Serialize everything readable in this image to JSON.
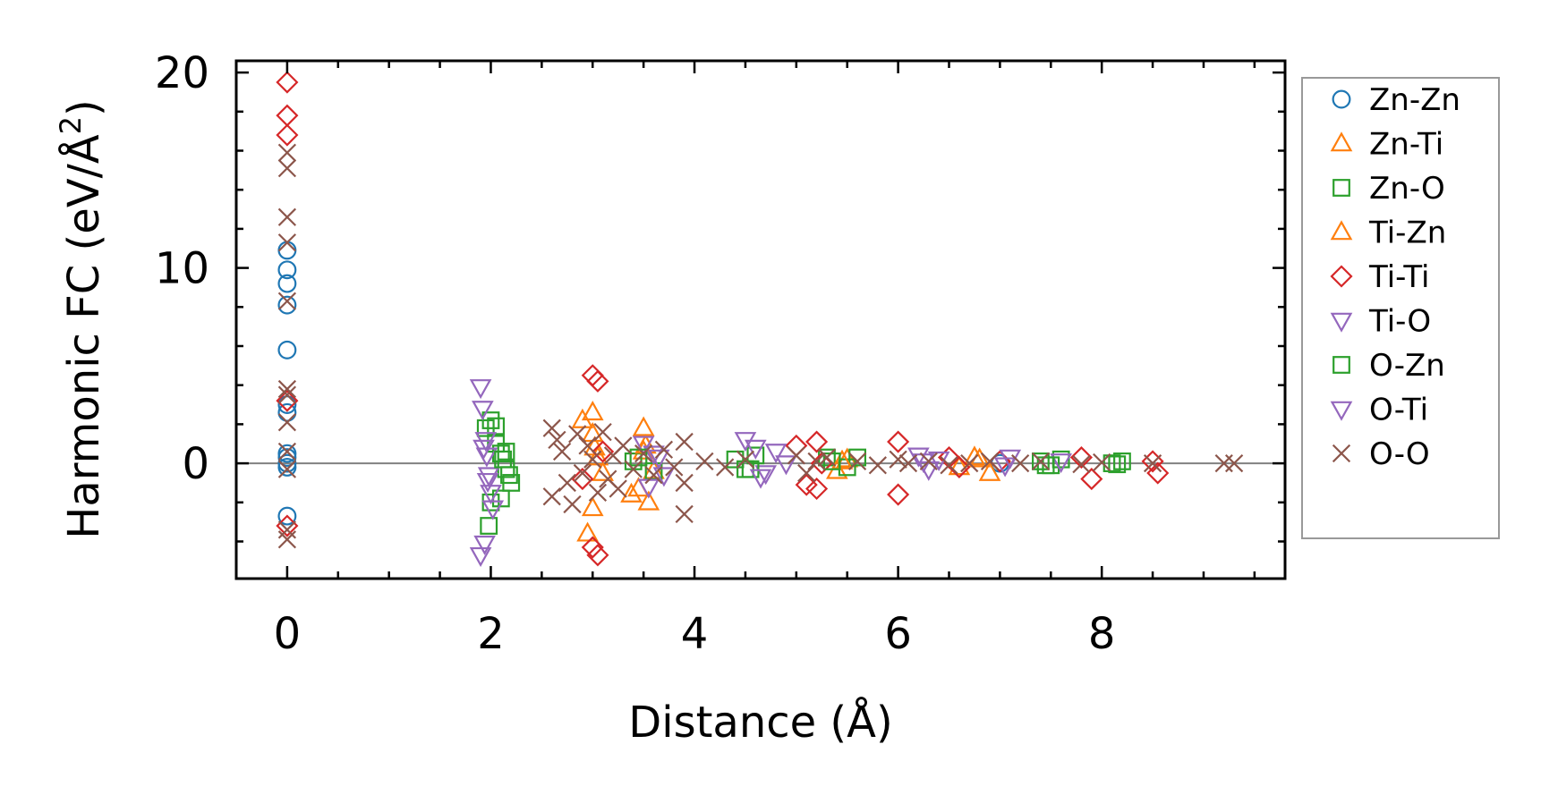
{
  "chart_data": {
    "type": "scatter",
    "title": "",
    "xlabel": "Distance (Å)",
    "ylabel_main": "Harmonic FC (eV/Å",
    "ylabel_sup": "2",
    "ylabel_close": ")",
    "xlim": [
      -0.5,
      9.8
    ],
    "ylim": [
      -5.9,
      20.6
    ],
    "xticks": [
      0,
      2,
      4,
      6,
      8
    ],
    "xtick_labels": [
      "0",
      "2",
      "4",
      "6",
      "8"
    ],
    "yticks": [
      0,
      10,
      20
    ],
    "ytick_labels": [
      "0",
      "10",
      "20"
    ],
    "zero_line": 0,
    "legend_position": "outside right",
    "series": [
      {
        "name": "Zn-Zn",
        "marker": "circle",
        "color": "#1f77b4",
        "x": [
          0,
          0,
          0,
          0,
          0,
          0,
          0,
          0,
          0,
          0,
          0,
          0,
          7.0
        ],
        "y": [
          10.9,
          9.9,
          9.2,
          8.1,
          5.8,
          3.0,
          2.6,
          0.5,
          0.3,
          0.0,
          -0.2,
          -2.7,
          0.0
        ]
      },
      {
        "name": "Zn-Ti",
        "marker": "triangle-up",
        "color": "#ff7f0e",
        "x": [
          2.9,
          3.0,
          3.0,
          3.05,
          3.1,
          3.5,
          3.5,
          3.45,
          3.55,
          3.6,
          3.0,
          2.95,
          5.4,
          5.5,
          6.8,
          6.9,
          6.6
        ],
        "y": [
          2.2,
          2.6,
          1.5,
          0.3,
          -0.5,
          1.8,
          0.6,
          -1.3,
          -2.0,
          -0.4,
          -2.3,
          -3.6,
          -0.4,
          0.2,
          0.2,
          -0.5,
          -0.2
        ]
      },
      {
        "name": "Zn-O",
        "marker": "square",
        "color": "#2ca02c",
        "x": [
          1.95,
          2.0,
          2.05,
          2.1,
          2.15,
          2.2,
          2.0,
          2.1,
          2.05,
          1.98,
          2.15,
          3.4,
          3.6,
          4.4,
          4.5,
          4.6,
          5.3,
          5.5,
          5.6,
          7.4,
          7.5,
          7.6,
          8.1,
          8.2
        ],
        "y": [
          1.8,
          2.2,
          1.0,
          0.5,
          -0.3,
          -1.0,
          -2.0,
          -1.8,
          1.9,
          -3.2,
          0.6,
          0.1,
          -0.4,
          0.2,
          -0.3,
          0.4,
          0.3,
          -0.2,
          0.3,
          0.1,
          -0.1,
          0.2,
          0.0,
          0.1
        ]
      },
      {
        "name": "Ti-Zn",
        "marker": "triangle-up",
        "color": "#ff7f0e",
        "x": [
          3.02,
          3.38,
          3.52,
          5.45,
          6.75
        ],
        "y": [
          0.8,
          -1.6,
          0.9,
          0.1,
          0.3
        ]
      },
      {
        "name": "Ti-Ti",
        "marker": "diamond",
        "color": "#d62728",
        "x": [
          0,
          0,
          0,
          0,
          0,
          3.0,
          3.05,
          3.0,
          3.05,
          2.9,
          3.1,
          5.0,
          5.1,
          5.2,
          5.2,
          5.25,
          6.0,
          6.0,
          6.5,
          6.6,
          7.0,
          7.8,
          7.9,
          8.5,
          8.55
        ],
        "y": [
          19.5,
          17.8,
          16.8,
          3.2,
          -3.2,
          4.5,
          4.2,
          -4.3,
          -4.7,
          -0.8,
          0.6,
          0.9,
          -1.1,
          1.1,
          -1.3,
          0.0,
          1.1,
          -1.6,
          0.3,
          -0.2,
          0.1,
          0.3,
          -0.8,
          0.1,
          -0.5
        ]
      },
      {
        "name": "Ti-O",
        "marker": "triangle-down",
        "color": "#9467bd",
        "x": [
          1.9,
          1.92,
          1.95,
          1.96,
          1.98,
          2.0,
          2.02,
          1.9,
          1.94,
          3.5,
          3.6,
          3.7,
          3.55,
          4.5,
          4.6,
          4.7,
          4.8,
          4.9,
          6.2,
          6.4,
          6.3,
          7.1,
          7.6
        ],
        "y": [
          3.9,
          2.8,
          1.2,
          0.4,
          -0.6,
          -1.5,
          -2.3,
          -4.7,
          -4.1,
          1.0,
          0.5,
          -0.6,
          -1.2,
          1.2,
          0.8,
          -0.5,
          0.6,
          0.0,
          0.4,
          0.2,
          -0.3,
          0.3,
          0.1
        ]
      },
      {
        "name": "O-Zn",
        "marker": "square",
        "color": "#2ca02c",
        "x": [
          2.12,
          2.18,
          3.45,
          4.55,
          5.35,
          7.45,
          8.15
        ],
        "y": [
          0.2,
          -0.6,
          0.3,
          -0.3,
          0.1,
          -0.1,
          -0.05
        ]
      },
      {
        "name": "O-Ti",
        "marker": "triangle-down",
        "color": "#9467bd",
        "x": [
          1.93,
          1.97,
          3.65,
          4.65,
          6.25,
          7.05
        ],
        "y": [
          0.8,
          -0.9,
          0.3,
          -0.7,
          0.1,
          -0.1
        ]
      },
      {
        "name": "O-O",
        "marker": "x",
        "color": "#8c564b",
        "x": [
          0,
          0,
          0,
          0,
          0,
          0,
          0,
          0,
          0,
          0,
          0,
          0,
          2.6,
          2.6,
          2.65,
          2.7,
          2.75,
          2.8,
          2.85,
          2.9,
          2.95,
          3.0,
          3.05,
          3.1,
          3.15,
          3.2,
          3.25,
          3.3,
          3.4,
          3.5,
          3.6,
          3.7,
          3.8,
          3.9,
          3.9,
          3.9,
          4.1,
          4.3,
          4.5,
          5.0,
          5.1,
          5.2,
          5.3,
          5.6,
          5.8,
          6.0,
          6.1,
          6.3,
          6.5,
          6.7,
          6.9,
          7.2,
          7.4,
          7.8,
          8.0,
          8.5,
          9.2,
          9.3
        ],
        "y": [
          15.9,
          15.1,
          12.6,
          11.3,
          8.3,
          3.8,
          3.5,
          2.1,
          0.6,
          -0.3,
          -3.4,
          -3.9,
          1.8,
          -1.7,
          1.2,
          0.6,
          -1.0,
          -2.1,
          1.5,
          -0.5,
          0.9,
          0.2,
          -1.5,
          1.6,
          -0.8,
          0.4,
          -1.3,
          0.9,
          -0.3,
          0.5,
          -0.6,
          0.7,
          -0.2,
          1.1,
          -1.0,
          -2.6,
          0.1,
          -0.2,
          0.2,
          0.4,
          -0.5,
          0.1,
          0.3,
          0.1,
          -0.1,
          0.2,
          0.0,
          0.1,
          -0.1,
          0.0,
          0.1,
          0.0,
          0.1,
          -0.05,
          0.05,
          0.0,
          0.0,
          0.0
        ]
      }
    ]
  }
}
